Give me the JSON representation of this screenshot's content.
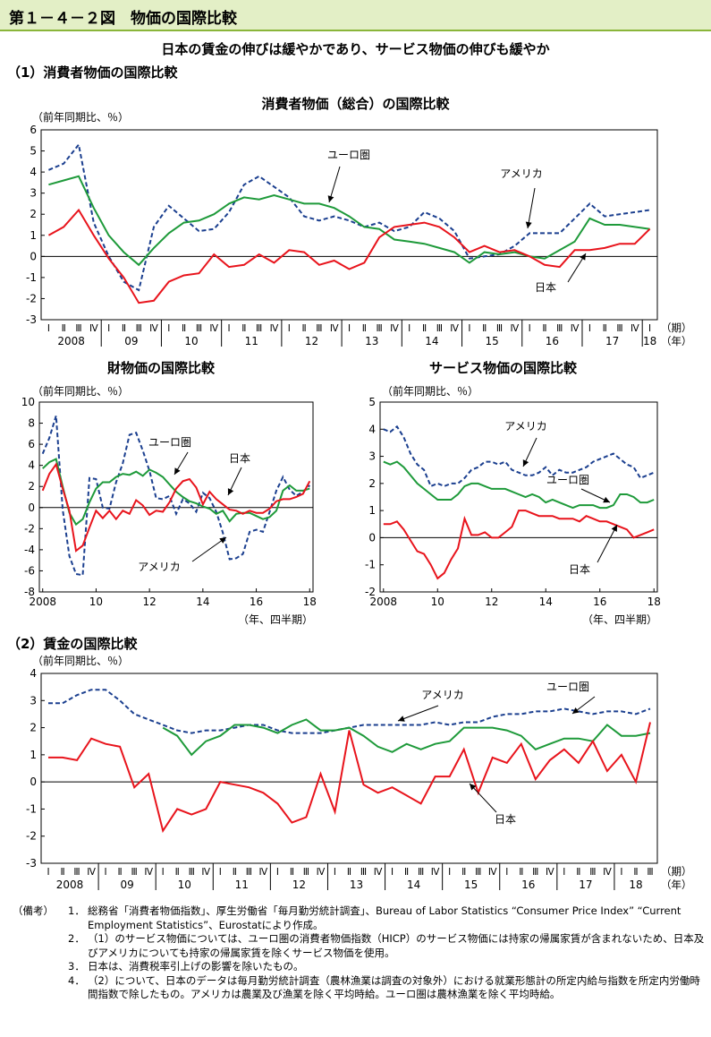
{
  "header": {
    "figure_title": "第１－４－２図　物価の国際比較",
    "headline": "日本の賃金の伸びは緩やかであり、サービス物価の伸びも緩やか",
    "section1": "（1）消費者物価の国際比較",
    "section2": "（2）賃金の国際比較"
  },
  "notes": {
    "label": "（備考）",
    "items": [
      {
        "num": "1．",
        "text": "総務省「消費者物価指数」、厚生労働省「毎月勤労統計調査」、Bureau of Labor Statistics “Consumer Price Index” “Current Employment Statistics”、Eurostatにより作成。"
      },
      {
        "num": "2．",
        "text": "（1）のサービス物価については、ユーロ圏の消費者物価指数（HICP）のサービス物価には持家の帰属家賃が含まれないため、日本及びアメリカについても持家の帰属家賃を除くサービス物価を使用。"
      },
      {
        "num": "3．",
        "text": "日本は、消費税率引上げの影響を除いたもの。"
      },
      {
        "num": "4．",
        "text": "（2）について、日本のデータは毎月勤労統計調査（農林漁業は調査の対象外）における就業形態計の所定内給与指数を所定内労働時間指数で除したもの。アメリカは農業及び漁業を除く平均時給。ユーロ圏は農林漁業を除く平均時給。"
      }
    ]
  },
  "colors": {
    "japan": "#e8141c",
    "usa": "#1b3f8f",
    "euro": "#1e9a3a"
  },
  "chart_data": [
    {
      "id": "cpi_total",
      "type": "line",
      "title": "消費者物価（総合）の国際比較",
      "ylabel": "（前年同期比、％）",
      "ylim": [
        -3,
        6
      ],
      "yticks": [
        -3,
        -2,
        -1,
        0,
        1,
        2,
        3,
        4,
        5,
        6
      ],
      "quarters": [
        "Ⅰ",
        "Ⅱ",
        "Ⅲ",
        "Ⅳ"
      ],
      "year_labels": [
        "2008",
        "09",
        "10",
        "11",
        "12",
        "13",
        "14",
        "15",
        "16",
        "17",
        "18"
      ],
      "period_label": "（期）",
      "year_unit_label": "（年）",
      "series": [
        {
          "name": "日本",
          "key": "japan",
          "values": [
            1.0,
            1.4,
            2.2,
            1.0,
            -0.1,
            -1.0,
            -2.2,
            -2.1,
            -1.2,
            -0.9,
            -0.8,
            0.1,
            -0.5,
            -0.4,
            0.1,
            -0.3,
            0.3,
            0.2,
            -0.4,
            -0.2,
            -0.6,
            -0.3,
            0.9,
            1.4,
            1.5,
            1.6,
            1.4,
            0.9,
            0.2,
            0.5,
            0.2,
            0.3,
            0.0,
            -0.4,
            -0.5,
            0.3,
            0.3,
            0.4,
            0.6,
            0.6,
            1.3
          ]
        },
        {
          "name": "アメリカ",
          "key": "usa",
          "values": [
            4.1,
            4.4,
            5.3,
            1.6,
            0.0,
            -1.2,
            -1.6,
            1.4,
            2.4,
            1.8,
            1.2,
            1.3,
            2.1,
            3.4,
            3.8,
            3.3,
            2.8,
            1.9,
            1.7,
            1.9,
            1.7,
            1.4,
            1.6,
            1.2,
            1.4,
            2.1,
            1.8,
            1.2,
            -0.1,
            0.0,
            0.1,
            0.5,
            1.1,
            1.1,
            1.1,
            1.8,
            2.5,
            1.9,
            2.0,
            2.1,
            2.2
          ]
        },
        {
          "name": "ユーロ圏",
          "key": "euro",
          "values": [
            3.4,
            3.6,
            3.8,
            2.3,
            1.0,
            0.2,
            -0.4,
            0.4,
            1.1,
            1.6,
            1.7,
            2.0,
            2.5,
            2.8,
            2.7,
            2.9,
            2.7,
            2.5,
            2.5,
            2.3,
            1.9,
            1.4,
            1.3,
            0.8,
            0.7,
            0.6,
            0.4,
            0.2,
            -0.3,
            0.2,
            0.1,
            0.2,
            0.0,
            -0.1,
            0.3,
            0.7,
            1.8,
            1.5,
            1.5,
            1.4,
            1.3
          ]
        }
      ],
      "annotations": [
        "ユーロ圏",
        "アメリカ",
        "日本"
      ]
    },
    {
      "id": "cpi_goods",
      "type": "line",
      "title": "財物価の国際比較",
      "ylabel": "（前年同期比、％）",
      "ylim": [
        -8,
        10
      ],
      "yticks": [
        -8,
        -6,
        -4,
        -2,
        0,
        2,
        4,
        6,
        8,
        10
      ],
      "xticks": [
        "2008",
        "10",
        "12",
        "14",
        "16",
        "18"
      ],
      "xunit": "（年、四半期）",
      "series": [
        {
          "name": "日本",
          "key": "japan",
          "values": [
            1.6,
            3.2,
            4.1,
            1.8,
            -0.3,
            -4.1,
            -3.6,
            -1.9,
            -0.3,
            -1.0,
            -0.3,
            -1.1,
            -0.3,
            -0.6,
            0.7,
            0.2,
            -0.7,
            -0.3,
            -0.4,
            0.5,
            1.8,
            2.5,
            2.7,
            1.9,
            0.3,
            1.5,
            0.8,
            0.3,
            -0.2,
            -0.3,
            -0.6,
            -0.3,
            -0.5,
            -0.5,
            -0.1,
            0.6,
            0.8,
            0.8,
            1.0,
            1.3,
            2.5
          ]
        },
        {
          "name": "アメリカ",
          "key": "usa",
          "values": [
            5.1,
            6.6,
            8.7,
            -0.2,
            -4.6,
            -6.3,
            -6.4,
            2.8,
            2.7,
            0.0,
            -0.1,
            2.4,
            4.2,
            6.9,
            7.1,
            5.4,
            3.5,
            0.9,
            0.8,
            1.1,
            -0.6,
            0.8,
            0.4,
            -0.4,
            1.4,
            0.9,
            -0.4,
            -2.4,
            -4.9,
            -4.8,
            -4.4,
            -2.3,
            -2.1,
            -2.3,
            -0.4,
            1.6,
            2.9,
            1.7,
            1.1,
            1.5,
            2.1
          ]
        },
        {
          "name": "ユーロ圏",
          "key": "euro",
          "values": [
            3.7,
            4.3,
            4.6,
            2.0,
            -0.5,
            -1.6,
            -1.1,
            0.5,
            1.8,
            2.4,
            2.4,
            2.9,
            3.2,
            3.1,
            3.4,
            3.0,
            3.6,
            3.3,
            2.9,
            2.2,
            1.5,
            1.0,
            0.6,
            0.4,
            0.1,
            -0.1,
            -0.6,
            -0.3,
            -1.3,
            -0.6,
            -0.5,
            -0.5,
            -0.8,
            -1.1,
            -0.9,
            -0.3,
            1.6,
            2.1,
            1.6,
            1.6,
            1.8
          ]
        }
      ],
      "annotations": [
        "ユーロ圏",
        "日本",
        "アメリカ"
      ]
    },
    {
      "id": "cpi_services",
      "type": "line",
      "title": "サービス物価の国際比較",
      "ylabel": "（前年同期比、％）",
      "ylim": [
        -2,
        5
      ],
      "yticks": [
        -2,
        -1,
        0,
        1,
        2,
        3,
        4,
        5
      ],
      "xticks": [
        "2008",
        "10",
        "12",
        "14",
        "16",
        "18"
      ],
      "xunit": "（年、四半期）",
      "series": [
        {
          "name": "日本",
          "key": "japan",
          "values": [
            0.5,
            0.5,
            0.6,
            0.3,
            -0.1,
            -0.5,
            -0.6,
            -1.0,
            -1.5,
            -1.3,
            -0.8,
            -0.4,
            0.7,
            0.1,
            0.1,
            0.2,
            0.0,
            0.0,
            0.2,
            0.4,
            1.0,
            1.0,
            0.9,
            0.8,
            0.8,
            0.8,
            0.7,
            0.7,
            0.7,
            0.6,
            0.8,
            0.7,
            0.6,
            0.6,
            0.5,
            0.4,
            0.3,
            0.0,
            0.1,
            0.2,
            0.3
          ]
        },
        {
          "name": "アメリカ",
          "key": "usa",
          "values": [
            4.0,
            3.9,
            4.1,
            3.7,
            3.1,
            2.7,
            2.5,
            1.9,
            2.0,
            1.9,
            2.0,
            2.0,
            2.2,
            2.5,
            2.6,
            2.8,
            2.8,
            2.7,
            2.8,
            2.5,
            2.4,
            2.3,
            2.3,
            2.4,
            2.6,
            2.3,
            2.5,
            2.4,
            2.4,
            2.5,
            2.6,
            2.8,
            2.9,
            3.0,
            3.1,
            2.9,
            2.7,
            2.6,
            2.2,
            2.3,
            2.4
          ]
        },
        {
          "name": "ユーロ圏",
          "key": "euro",
          "values": [
            2.8,
            2.7,
            2.8,
            2.6,
            2.3,
            2.0,
            1.8,
            1.6,
            1.4,
            1.4,
            1.4,
            1.6,
            1.9,
            2.0,
            2.0,
            1.9,
            1.8,
            1.8,
            1.8,
            1.7,
            1.6,
            1.5,
            1.6,
            1.5,
            1.3,
            1.4,
            1.3,
            1.2,
            1.1,
            1.2,
            1.2,
            1.2,
            1.1,
            1.1,
            1.2,
            1.6,
            1.6,
            1.5,
            1.3,
            1.3,
            1.4
          ]
        }
      ],
      "annotations": [
        "アメリカ",
        "ユーロ圏",
        "日本"
      ]
    },
    {
      "id": "wages",
      "type": "line",
      "title": "",
      "ylabel": "（前年同期比、％）",
      "ylim": [
        -3,
        4
      ],
      "yticks": [
        -3,
        -2,
        -1,
        0,
        1,
        2,
        3,
        4
      ],
      "quarters": [
        "Ⅰ",
        "Ⅱ",
        "Ⅲ",
        "Ⅳ"
      ],
      "year_labels": [
        "2008",
        "09",
        "10",
        "11",
        "12",
        "13",
        "14",
        "15",
        "16",
        "17",
        "18"
      ],
      "period_label": "（期）",
      "year_unit_label": "（年）",
      "series": [
        {
          "name": "日本",
          "key": "japan",
          "values": [
            0.9,
            0.9,
            0.8,
            1.6,
            1.4,
            1.3,
            -0.2,
            0.3,
            -1.8,
            -1.0,
            -1.2,
            -1.0,
            0.0,
            -0.1,
            -0.2,
            -0.4,
            -0.8,
            -1.5,
            -1.3,
            0.3,
            -1.1,
            1.9,
            -0.1,
            -0.4,
            -0.2,
            -0.5,
            -0.8,
            0.2,
            0.2,
            1.2,
            -0.4,
            0.9,
            0.7,
            1.4,
            0.1,
            0.8,
            1.2,
            0.7,
            1.5,
            0.4,
            1.0,
            0.0,
            2.2
          ]
        },
        {
          "name": "アメリカ",
          "key": "usa",
          "values": [
            2.9,
            2.9,
            3.2,
            3.4,
            3.4,
            3.0,
            2.5,
            2.3,
            2.1,
            1.9,
            1.8,
            1.9,
            1.9,
            2.0,
            2.1,
            2.1,
            1.9,
            1.8,
            1.8,
            1.8,
            1.9,
            2.0,
            2.1,
            2.1,
            2.1,
            2.1,
            2.1,
            2.2,
            2.1,
            2.2,
            2.2,
            2.4,
            2.5,
            2.5,
            2.6,
            2.6,
            2.7,
            2.6,
            2.5,
            2.6,
            2.6,
            2.5,
            2.7
          ]
        },
        {
          "name": "ユーロ圏",
          "key": "euro",
          "values": [
            null,
            null,
            null,
            null,
            null,
            null,
            null,
            null,
            2.0,
            1.7,
            1.0,
            1.5,
            1.7,
            2.1,
            2.1,
            2.0,
            1.8,
            2.1,
            2.3,
            1.9,
            1.9,
            2.0,
            1.7,
            1.3,
            1.1,
            1.4,
            1.2,
            1.4,
            1.5,
            2.0,
            2.0,
            2.0,
            1.9,
            1.7,
            1.2,
            1.4,
            1.6,
            1.6,
            1.5,
            2.1,
            1.7,
            1.7,
            1.8
          ]
        }
      ],
      "annotations": [
        "アメリカ",
        "ユーロ圏",
        "日本"
      ]
    }
  ]
}
